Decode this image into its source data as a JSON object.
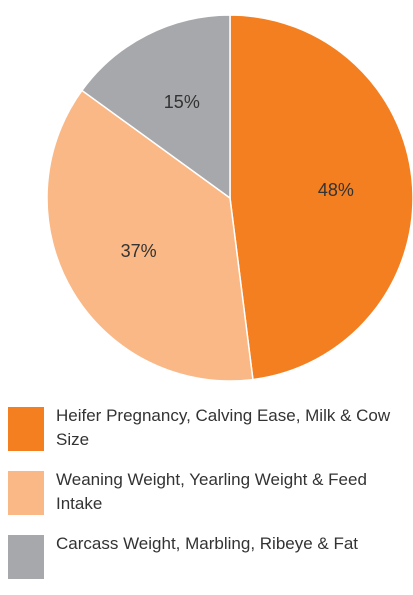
{
  "chart_data": {
    "type": "pie",
    "categories": [
      "Heifer Pregnancy, Calving Ease, Milk & Cow Size",
      "Weaning Weight, Yearling Weight & Feed Intake",
      "Carcass Weight, Marbling, Ribeye & Fat"
    ],
    "values": [
      48,
      37,
      15
    ],
    "value_labels": [
      "48%",
      "37%",
      "15%"
    ],
    "colors": [
      "#f47f20",
      "#f9b886",
      "#a7a8ab"
    ]
  }
}
